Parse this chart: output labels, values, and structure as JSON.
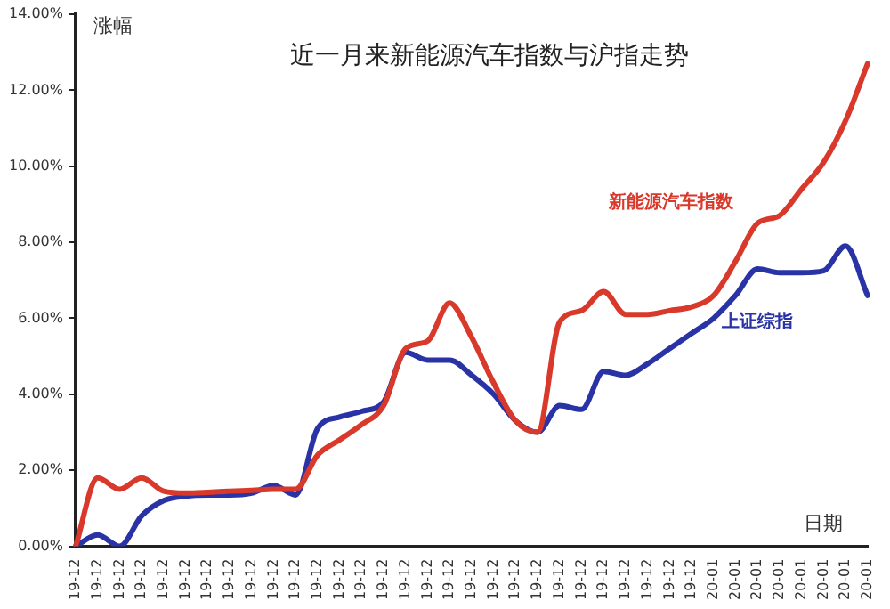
{
  "chart_data": {
    "type": "line",
    "title": "近一月来新能源汽车指数与沪指走势",
    "xlabel": "日期",
    "ylabel": "涨幅",
    "categories": [
      "19-12",
      "19-12",
      "19-12",
      "19-12",
      "19-12",
      "19-12",
      "19-12",
      "19-12",
      "19-12",
      "19-12",
      "19-12",
      "19-12",
      "19-12",
      "19-12",
      "19-12",
      "19-12",
      "19-12",
      "19-12",
      "19-12",
      "19-12",
      "19-12",
      "19-12",
      "19-12",
      "19-12",
      "19-12",
      "19-12",
      "19-12",
      "19-12",
      "19-12",
      "20-01",
      "20-01",
      "20-01",
      "20-01",
      "20-01",
      "20-01",
      "20-01",
      "20-01"
    ],
    "series": [
      {
        "name": "新能源汽车指数",
        "color": "#d9392b",
        "values": [
          0,
          1.8,
          1.5,
          1.8,
          1.45,
          1.4,
          1.42,
          1.45,
          1.47,
          1.5,
          1.5,
          2.4,
          2.8,
          3.2,
          3.7,
          5.2,
          5.4,
          6.4,
          5.5,
          4.3,
          3.3,
          3.0,
          5.9,
          6.2,
          6.7,
          6.1,
          6.1,
          6.2,
          6.3,
          6.6,
          7.5,
          8.5,
          8.7,
          9.4,
          10.1,
          11.2,
          12.7
        ]
      },
      {
        "name": "上证综指",
        "color": "#2a33a6",
        "values": [
          0,
          0.3,
          0,
          0.8,
          1.2,
          1.32,
          1.35,
          1.35,
          1.4,
          1.6,
          1.35,
          3.1,
          3.4,
          3.55,
          3.8,
          5.1,
          4.9,
          4.9,
          4.5,
          4.0,
          3.3,
          3.0,
          3.7,
          3.6,
          4.6,
          4.5,
          4.8,
          5.2,
          5.6,
          6.0,
          6.6,
          7.3,
          7.2,
          7.2,
          7.25,
          7.9,
          6.6
        ]
      }
    ],
    "ylim": [
      0,
      14
    ],
    "yticks": [
      {
        "value": 0,
        "label": "0.00%"
      },
      {
        "value": 2,
        "label": "2.00%"
      },
      {
        "value": 4,
        "label": "4.00%"
      },
      {
        "value": 6,
        "label": "6.00%"
      },
      {
        "value": 8,
        "label": "8.00%"
      },
      {
        "value": 10,
        "label": "10.00%"
      },
      {
        "value": 12,
        "label": "12.00%"
      },
      {
        "value": 14,
        "label": "14.00%"
      }
    ],
    "grid": false,
    "legend": false,
    "marker": "none",
    "line_style": "solid"
  }
}
